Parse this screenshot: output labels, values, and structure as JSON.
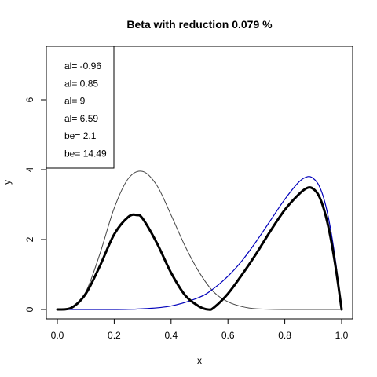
{
  "chart_data": {
    "type": "line",
    "title": "Beta with reduction 0.079 %",
    "xlabel": "x",
    "ylabel": "y",
    "xlim": [
      0,
      1
    ],
    "ylim": [
      0,
      7.5
    ],
    "xticks": [
      0.0,
      0.2,
      0.4,
      0.6,
      0.8,
      1.0
    ],
    "xtick_labels": [
      "0.0",
      "0.2",
      "0.4",
      "0.6",
      "0.8",
      "1.0"
    ],
    "yticks": [
      0,
      2,
      4,
      6
    ],
    "ytick_labels": [
      "0",
      "2",
      "4",
      "6"
    ],
    "legend": {
      "position": "top-left",
      "entries": [
        "al= -0.96",
        "al= 0.85",
        "al= 9",
        "al= 6.59",
        "be= 2.1",
        "be= 14.49"
      ]
    },
    "series": [
      {
        "style": "thin-gray",
        "color": "#444444",
        "x": [
          0,
          0.05,
          0.1,
          0.15,
          0.2,
          0.25,
          0.3,
          0.35,
          0.4,
          0.45,
          0.5,
          0.55,
          0.6,
          0.65,
          0.7,
          0.8,
          0.9,
          1.0
        ],
        "y": [
          0,
          0.05,
          0.5,
          1.6,
          2.9,
          3.75,
          3.95,
          3.55,
          2.7,
          1.8,
          1.05,
          0.5,
          0.22,
          0.08,
          0.02,
          0,
          0,
          0
        ]
      },
      {
        "style": "blue",
        "color": "#0000bb",
        "x": [
          0,
          0.2,
          0.3,
          0.4,
          0.5,
          0.55,
          0.6,
          0.65,
          0.7,
          0.75,
          0.8,
          0.85,
          0.88,
          0.9,
          0.92,
          0.94,
          0.96,
          0.98,
          1.0
        ],
        "y": [
          0,
          0,
          0.02,
          0.1,
          0.35,
          0.6,
          0.95,
          1.4,
          1.95,
          2.55,
          3.15,
          3.65,
          3.8,
          3.75,
          3.55,
          3.1,
          2.35,
          1.3,
          0
        ]
      },
      {
        "style": "thick-black",
        "color": "#000000",
        "x": [
          0,
          0.05,
          0.1,
          0.15,
          0.2,
          0.25,
          0.28,
          0.3,
          0.35,
          0.4,
          0.45,
          0.5,
          0.53,
          0.55,
          0.6,
          0.65,
          0.7,
          0.75,
          0.8,
          0.85,
          0.88,
          0.9,
          0.92,
          0.94,
          0.96,
          0.98,
          1.0
        ],
        "y": [
          0,
          0.05,
          0.45,
          1.25,
          2.15,
          2.65,
          2.7,
          2.6,
          1.9,
          1.05,
          0.4,
          0.08,
          0.0,
          0.05,
          0.45,
          1.0,
          1.6,
          2.25,
          2.85,
          3.3,
          3.48,
          3.45,
          3.25,
          2.8,
          2.1,
          1.15,
          0
        ]
      }
    ]
  }
}
